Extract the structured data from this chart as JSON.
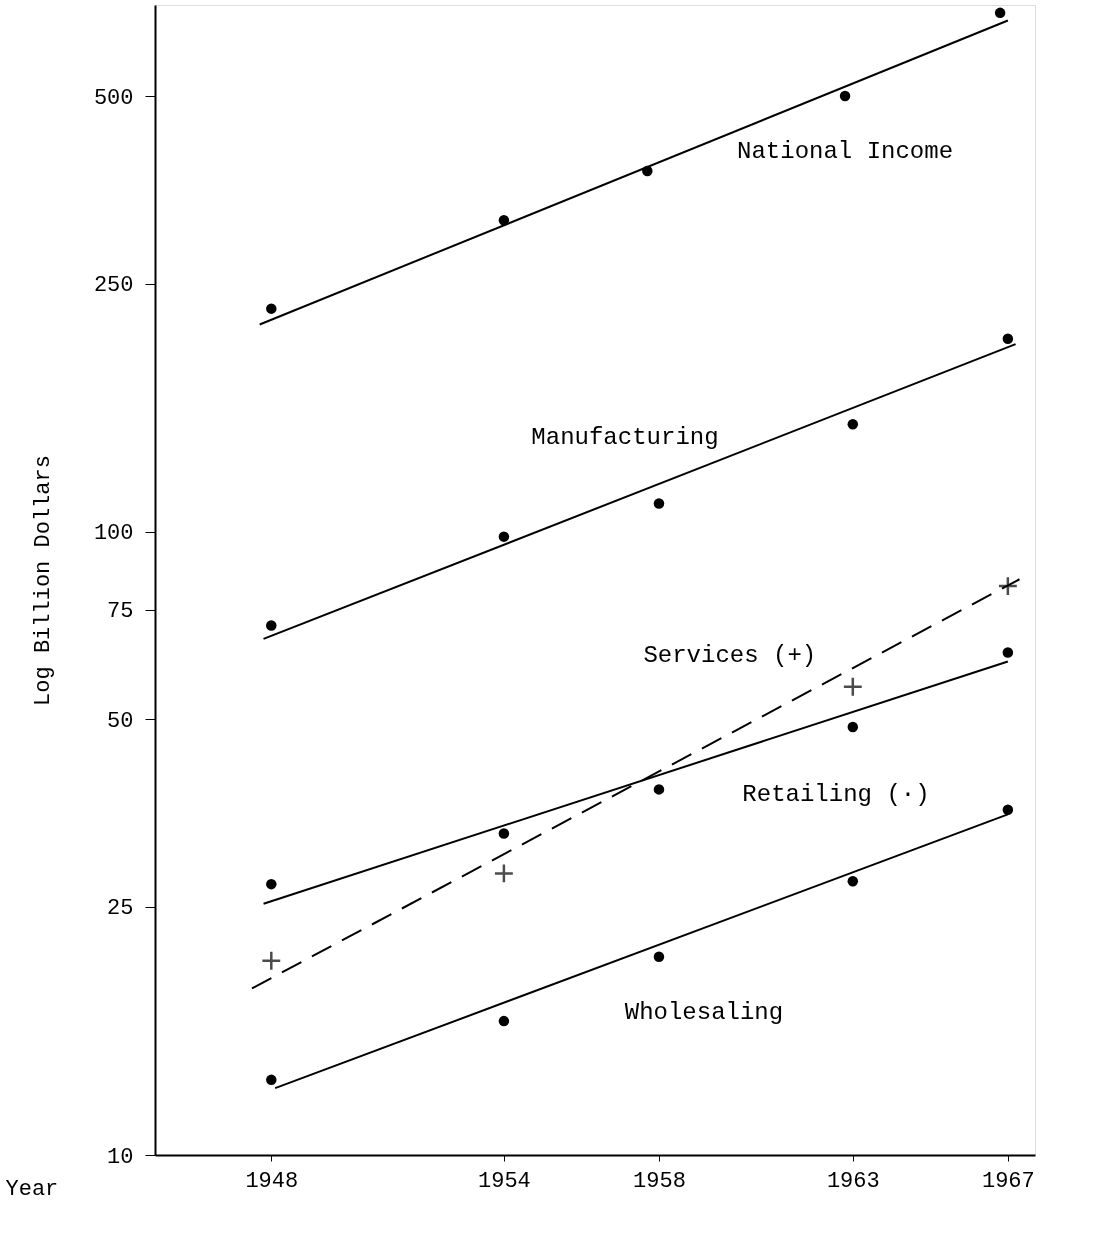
{
  "chart_data": {
    "type": "scatter",
    "xlabel": "Year",
    "ylabel": "Log Billion Dollars",
    "log": "y",
    "grid": false,
    "xlim": [
      1945,
      1967.7
    ],
    "xticks": [
      1948,
      1954,
      1958,
      1963,
      1967
    ],
    "ylim": [
      10,
      700
    ],
    "yticks": [
      10,
      25,
      50,
      75,
      100,
      250,
      500
    ],
    "series": [
      {
        "name": "National Income",
        "marker": "circle",
        "color": "#000000",
        "x": [
          1948,
          1954,
          1957.7,
          1962.8,
          1966.8
        ],
        "values": [
          228,
          316,
          379,
          500,
          680
        ]
      },
      {
        "type": "line",
        "line_style": "solid",
        "marker": "none",
        "color": "#000000",
        "x": [
          1947.7,
          1967
        ],
        "values": [
          215,
          661
        ]
      },
      {
        "name": "Manufacturing",
        "marker": "circle",
        "color": "#000000",
        "x": [
          1948,
          1954,
          1958,
          1963,
          1967
        ],
        "values": [
          70.7,
          98.2,
          111,
          148.7,
          204
        ]
      },
      {
        "type": "line",
        "line_style": "solid",
        "marker": "none",
        "color": "#000000",
        "x": [
          1947.8,
          1967.2
        ],
        "values": [
          67.3,
          200
        ]
      },
      {
        "name": "Services (+)",
        "marker": "cross",
        "color": "#000000",
        "x": [
          1948,
          1954,
          1963,
          1967
        ],
        "values": [
          20.5,
          28.3,
          56.4,
          81.8
        ]
      },
      {
        "type": "line",
        "line_style": "dashed",
        "marker": "none",
        "color": "#000000",
        "x": [
          1947.5,
          1967.3
        ],
        "values": [
          18.5,
          83.9
        ]
      },
      {
        "name": "Retailing (·)",
        "marker": "circle",
        "color": "#000000",
        "x": [
          1948,
          1954,
          1958,
          1963,
          1967
        ],
        "values": [
          27.2,
          32.8,
          38.6,
          48.6,
          64
        ]
      },
      {
        "type": "line",
        "line_style": "solid",
        "marker": "none",
        "color": "#000000",
        "x": [
          1947.8,
          1967
        ],
        "values": [
          25.3,
          61.9
        ]
      },
      {
        "name": "Wholesaling",
        "marker": "circle",
        "color": "#000000",
        "x": [
          1948,
          1954,
          1958,
          1963,
          1967
        ],
        "values": [
          13.2,
          16.4,
          20.8,
          27.5,
          35.8
        ]
      },
      {
        "type": "line",
        "line_style": "solid",
        "marker": "none",
        "color": "#000000",
        "x": [
          1948.1,
          1967
        ],
        "values": [
          12.8,
          35.2
        ]
      }
    ]
  }
}
